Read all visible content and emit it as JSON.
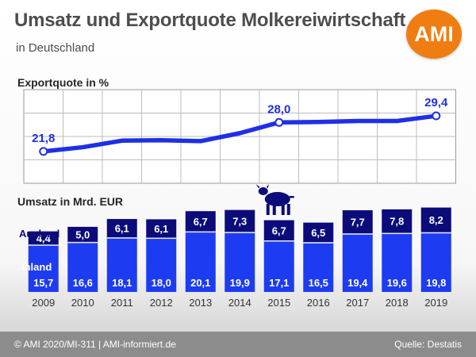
{
  "header": {
    "title": "Umsatz und Exportquote Molkereiwirtschaft",
    "subtitle": "in Deutschland",
    "logo_text": "AMI"
  },
  "footer": {
    "left": "© AMI 2020/MI-311 | AMI-informiert.de",
    "right": "Quelle: Destatis"
  },
  "colors": {
    "line": "#1f2fe6",
    "export_bar": "#0b0c7a",
    "domestic_bar": "#1d3cf2",
    "logo": "#f07d12",
    "footer": "#8c8c8c"
  },
  "chart_data": [
    {
      "type": "line",
      "title": "Exportquote in %",
      "x": [
        "2009",
        "2010",
        "2011",
        "2012",
        "2013",
        "2014",
        "2015",
        "2016",
        "2017",
        "2018",
        "2019"
      ],
      "series": [
        {
          "values": [
            21.8,
            22.7,
            24.1,
            24.2,
            24.0,
            25.7,
            28.0,
            28.1,
            28.3,
            28.3,
            29.4
          ]
        }
      ],
      "labeled_points": [
        {
          "year": "2009",
          "label": "21,8"
        },
        {
          "year": "2015",
          "label": "28,0"
        },
        {
          "year": "2019",
          "label": "29,4"
        }
      ],
      "ylim": [
        15,
        35
      ],
      "grid": true
    },
    {
      "type": "bar",
      "title": "Umsatz in Mrd. EUR",
      "stacked": true,
      "icon": "cow-icon",
      "categories": [
        "2009",
        "2010",
        "2011",
        "2012",
        "2013",
        "2014",
        "2015",
        "2016",
        "2017",
        "2018",
        "2019"
      ],
      "series": [
        {
          "name": "Inland",
          "values": [
            15.7,
            16.6,
            18.1,
            18.0,
            20.1,
            19.9,
            17.1,
            16.5,
            19.4,
            19.6,
            19.8
          ],
          "labels": [
            "15,7",
            "16,6",
            "18,1",
            "18,0",
            "20,1",
            "19,9",
            "17,1",
            "16,5",
            "19,4",
            "19,6",
            "19,8"
          ]
        },
        {
          "name": "Ausland",
          "values": [
            4.4,
            5.0,
            6.1,
            6.1,
            6.7,
            7.3,
            6.7,
            6.5,
            7.7,
            7.8,
            8.2
          ],
          "labels": [
            "4,4",
            "5,0",
            "6,1",
            "6,1",
            "6,7",
            "7,3",
            "6,7",
            "6,5",
            "7,7",
            "7,8",
            "8,2"
          ]
        }
      ]
    }
  ]
}
